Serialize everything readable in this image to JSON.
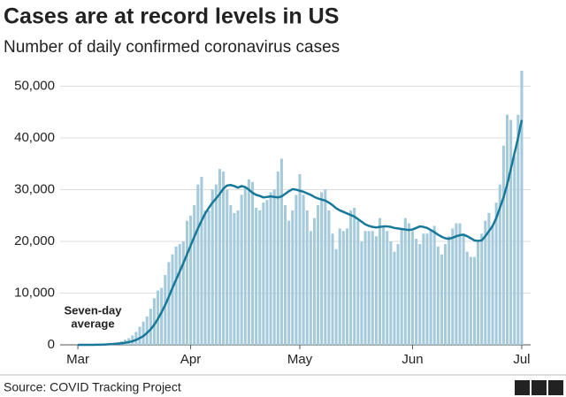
{
  "chart_data": {
    "type": "bar-line",
    "title": "Cases are at record levels in US",
    "subtitle": "Number of daily confirmed coronavirus cases",
    "categories": [
      "Mar",
      null,
      null,
      null,
      null,
      null,
      null,
      null,
      null,
      null,
      null,
      null,
      null,
      null,
      null,
      null,
      null,
      null,
      null,
      null,
      null,
      null,
      null,
      null,
      null,
      null,
      null,
      null,
      null,
      null,
      null,
      "Apr",
      null,
      null,
      null,
      null,
      null,
      null,
      null,
      null,
      null,
      null,
      null,
      null,
      null,
      null,
      null,
      null,
      null,
      null,
      null,
      null,
      null,
      null,
      null,
      null,
      null,
      null,
      null,
      null,
      null,
      "May",
      null,
      null,
      null,
      null,
      null,
      null,
      null,
      null,
      null,
      null,
      null,
      null,
      null,
      null,
      null,
      null,
      null,
      null,
      null,
      null,
      null,
      null,
      null,
      null,
      null,
      null,
      null,
      null,
      null,
      null,
      "Jun",
      null,
      null,
      null,
      null,
      null,
      null,
      null,
      null,
      null,
      null,
      null,
      null,
      null,
      null,
      null,
      null,
      null,
      null,
      null,
      null,
      null,
      null,
      null,
      null,
      null,
      null,
      null,
      null,
      null,
      "Jul"
    ],
    "series": [
      {
        "type": "bar",
        "color": "#a5cadb",
        "values": [
          0,
          0,
          20,
          30,
          50,
          80,
          100,
          150,
          200,
          300,
          400,
          500,
          700,
          1000,
          1300,
          1800,
          2500,
          3500,
          4500,
          5500,
          7000,
          9000,
          10500,
          11000,
          13500,
          16000,
          17500,
          19000,
          19500,
          20000,
          24000,
          25000,
          27000,
          31000,
          32500,
          26000,
          26000,
          30000,
          31000,
          34000,
          33500,
          30000,
          27000,
          25500,
          26000,
          29000,
          30500,
          32000,
          31500,
          26500,
          26000,
          27500,
          28000,
          29500,
          30000,
          33500,
          36000,
          27000,
          24000,
          26000,
          29000,
          33000,
          29000,
          26000,
          22000,
          24500,
          27000,
          29500,
          30000,
          26000,
          21500,
          18500,
          22500,
          22000,
          22500,
          26000,
          26500,
          24000,
          20000,
          22000,
          22000,
          22000,
          21000,
          24500,
          23000,
          22000,
          20000,
          18000,
          19500,
          22500,
          24500,
          23500,
          22000,
          20500,
          19500,
          21500,
          21500,
          22000,
          23000,
          19000,
          17500,
          19500,
          21000,
          22500,
          23500,
          23500,
          21500,
          18000,
          17000,
          17000,
          20000,
          21500,
          24000,
          25500,
          23000,
          27500,
          31000,
          38500,
          44500,
          43500,
          36500,
          44500,
          53000
        ]
      },
      {
        "type": "line",
        "color": "#17799a",
        "values": [
          0,
          0,
          0,
          0,
          10,
          20,
          30,
          50,
          80,
          120,
          170,
          230,
          300,
          400,
          530,
          700,
          950,
          1300,
          1700,
          2300,
          3000,
          3900,
          5000,
          6300,
          7700,
          9300,
          11000,
          12600,
          14200,
          15800,
          17500,
          19200,
          20900,
          22500,
          24000,
          25400,
          26500,
          27500,
          28300,
          29200,
          30200,
          30800,
          30900,
          30700,
          30400,
          30700,
          30500,
          30000,
          29400,
          29000,
          28800,
          28500,
          28600,
          28700,
          28600,
          28500,
          28700,
          29200,
          29700,
          30100,
          30000,
          29800,
          29600,
          29300,
          29000,
          28600,
          28300,
          28100,
          27900,
          27500,
          27000,
          26400,
          26000,
          25700,
          25400,
          25100,
          24800,
          24300,
          23800,
          23300,
          23000,
          22800,
          22700,
          22800,
          22900,
          22900,
          22800,
          22600,
          22500,
          22400,
          22300,
          22200,
          22300,
          22600,
          22900,
          22800,
          22600,
          22200,
          21800,
          21300,
          20900,
          20600,
          20500,
          20700,
          21000,
          21200,
          21300,
          21000,
          20600,
          20200,
          20100,
          20200,
          21000,
          22000,
          23000,
          24500,
          26500,
          28500,
          31000,
          34000,
          37000,
          40000,
          43500
        ]
      }
    ],
    "annotation": [
      "Seven-day",
      "average"
    ],
    "ylim": [
      0,
      53000
    ],
    "yticks": [
      0,
      {
        "value": 10000,
        "label": "10,000"
      },
      {
        "value": 20000,
        "label": "20,000"
      },
      {
        "value": 30000,
        "label": "30,000"
      },
      {
        "value": 40000,
        "label": "40,000"
      },
      {
        "value": 50000,
        "label": "50,000"
      }
    ],
    "grid": true
  },
  "footer": {
    "source": "Source: COVID Tracking Project",
    "logo": [
      "B",
      "B",
      "C"
    ]
  }
}
